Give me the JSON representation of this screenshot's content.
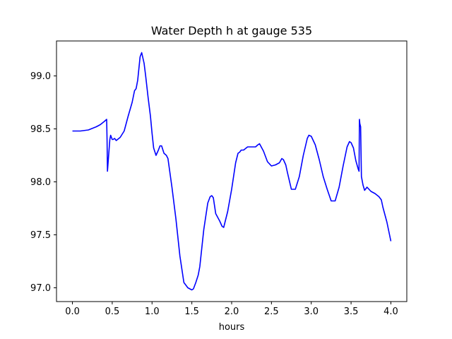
{
  "chart_data": {
    "type": "line",
    "title": "Water Depth h at gauge 535",
    "xlabel": "hours",
    "ylabel": "",
    "xlim": [
      -0.2,
      4.2
    ],
    "ylim": [
      96.87,
      99.33
    ],
    "x_ticks": [
      0.0,
      0.5,
      1.0,
      1.5,
      2.0,
      2.5,
      3.0,
      3.5,
      4.0
    ],
    "x_tick_labels": [
      "0.0",
      "0.5",
      "1.0",
      "1.5",
      "2.0",
      "2.5",
      "3.0",
      "3.5",
      "4.0"
    ],
    "y_ticks": [
      97.0,
      97.5,
      98.0,
      98.5,
      99.0
    ],
    "y_tick_labels": [
      "97.0",
      "97.5",
      "98.0",
      "98.5",
      "99.0"
    ],
    "grid": false,
    "legend": "none",
    "series": [
      {
        "color": "#0000ff",
        "x": [
          0.0,
          0.1,
          0.2,
          0.3,
          0.35,
          0.4,
          0.43,
          0.435,
          0.44,
          0.45,
          0.47,
          0.48,
          0.5,
          0.51,
          0.53,
          0.55,
          0.6,
          0.65,
          0.7,
          0.75,
          0.78,
          0.8,
          0.82,
          0.85,
          0.87,
          0.9,
          0.92,
          0.95,
          0.98,
          1.0,
          1.02,
          1.05,
          1.08,
          1.1,
          1.12,
          1.15,
          1.18,
          1.2,
          1.25,
          1.3,
          1.35,
          1.4,
          1.45,
          1.5,
          1.52,
          1.55,
          1.58,
          1.6,
          1.65,
          1.7,
          1.73,
          1.75,
          1.77,
          1.8,
          1.85,
          1.88,
          1.9,
          1.95,
          2.0,
          2.05,
          2.08,
          2.1,
          2.12,
          2.15,
          2.2,
          2.25,
          2.3,
          2.33,
          2.35,
          2.4,
          2.45,
          2.5,
          2.55,
          2.6,
          2.63,
          2.65,
          2.68,
          2.7,
          2.75,
          2.8,
          2.85,
          2.9,
          2.95,
          2.97,
          3.0,
          3.05,
          3.1,
          3.15,
          3.2,
          3.25,
          3.3,
          3.35,
          3.4,
          3.45,
          3.48,
          3.5,
          3.53,
          3.56,
          3.59,
          3.6,
          3.605,
          3.61,
          3.62,
          3.63,
          3.65,
          3.67,
          3.7,
          3.75,
          3.8,
          3.85,
          3.88,
          3.9,
          3.95,
          4.0
        ],
        "y": [
          98.48,
          98.48,
          98.49,
          98.52,
          98.54,
          98.57,
          98.59,
          98.4,
          98.1,
          98.2,
          98.4,
          98.44,
          98.4,
          98.4,
          98.41,
          98.39,
          98.42,
          98.48,
          98.62,
          98.75,
          98.86,
          98.88,
          98.96,
          99.18,
          99.22,
          99.12,
          99.0,
          98.8,
          98.62,
          98.46,
          98.32,
          98.25,
          98.3,
          98.34,
          98.34,
          98.27,
          98.25,
          98.22,
          97.95,
          97.65,
          97.3,
          97.05,
          97.0,
          96.98,
          96.99,
          97.05,
          97.12,
          97.2,
          97.55,
          97.8,
          97.86,
          97.87,
          97.85,
          97.7,
          97.63,
          97.58,
          97.57,
          97.72,
          97.93,
          98.18,
          98.27,
          98.28,
          98.3,
          98.3,
          98.33,
          98.33,
          98.33,
          98.35,
          98.36,
          98.29,
          98.19,
          98.15,
          98.16,
          98.18,
          98.22,
          98.21,
          98.16,
          98.09,
          97.93,
          97.93,
          98.05,
          98.25,
          98.41,
          98.44,
          98.43,
          98.35,
          98.21,
          98.05,
          97.93,
          97.82,
          97.82,
          97.95,
          98.15,
          98.33,
          98.38,
          98.37,
          98.32,
          98.2,
          98.12,
          98.1,
          98.59,
          98.55,
          98.52,
          98.05,
          97.97,
          97.92,
          97.95,
          97.91,
          97.89,
          97.86,
          97.83,
          97.76,
          97.62,
          97.44
        ]
      }
    ]
  }
}
